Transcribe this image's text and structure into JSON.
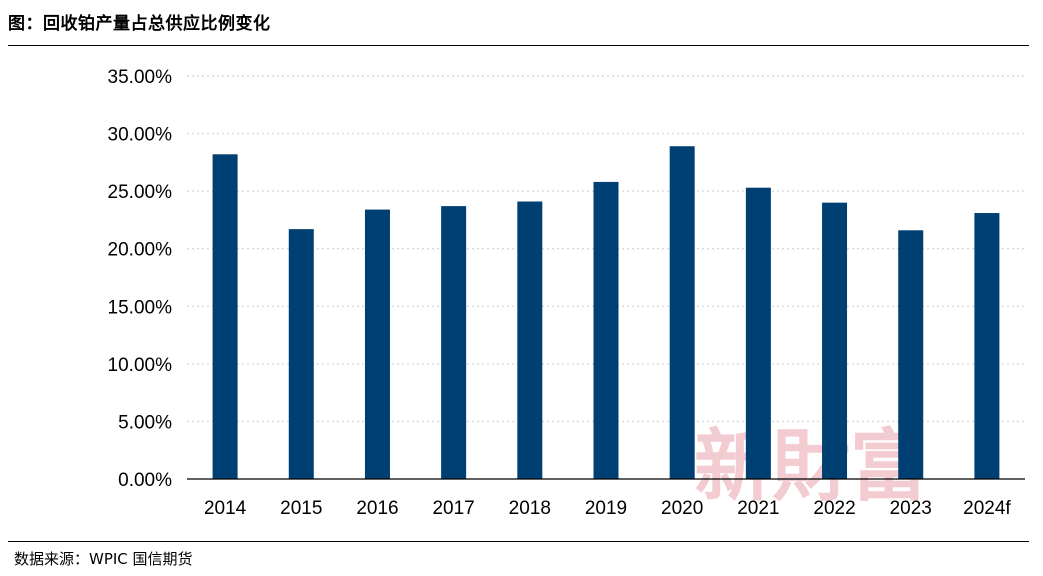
{
  "figure": {
    "title": "图：回收铂产量占总供应比例变化",
    "source": "数据来源：WPIC  国信期货",
    "watermark": "新財富"
  },
  "colors": {
    "bar": "#003f72",
    "grid": "#d9d9d9",
    "axis": "#000000",
    "watermark": "#e8a3ac"
  },
  "chart_data": {
    "type": "bar",
    "title": "",
    "xlabel": "",
    "ylabel": "",
    "categories": [
      "2014",
      "2015",
      "2016",
      "2017",
      "2018",
      "2019",
      "2020",
      "2021",
      "2022",
      "2023",
      "2024f"
    ],
    "values": [
      28.2,
      21.7,
      23.4,
      23.7,
      24.1,
      25.8,
      28.9,
      25.3,
      24.0,
      21.6,
      23.1
    ],
    "ylim": [
      0,
      35
    ],
    "yticks": [
      0,
      5,
      10,
      15,
      20,
      25,
      30,
      35
    ],
    "ytick_labels": [
      "0.00%",
      "5.00%",
      "10.00%",
      "15.00%",
      "20.00%",
      "25.00%",
      "30.00%",
      "35.00%"
    ],
    "grid": true,
    "grid_style": "dotted",
    "legend": "none"
  }
}
